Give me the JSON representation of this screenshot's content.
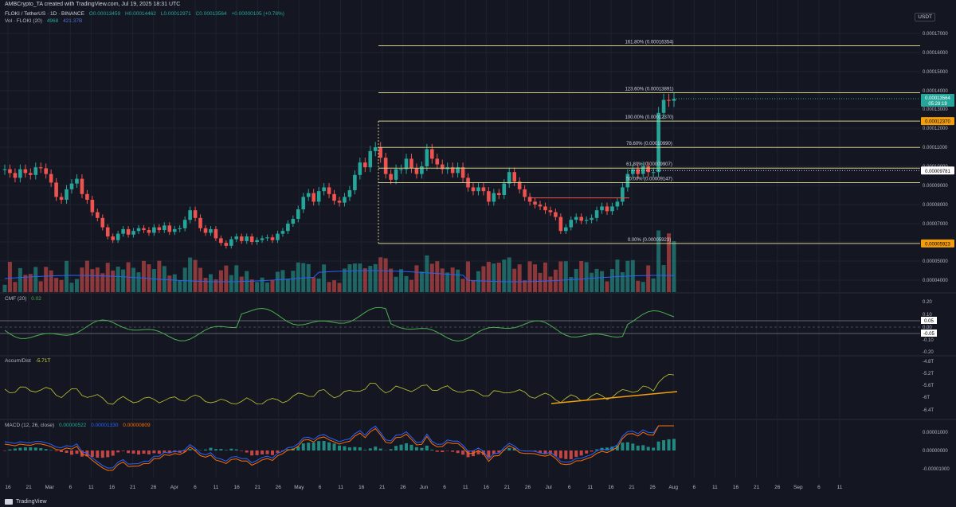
{
  "header": {
    "author_line": "AMBCrypto_TA created with TradingView.com, Jul 19, 2025 18:31 UTC",
    "currency": "USDT"
  },
  "main_legend": {
    "symbol": "FLOKI / TetherUS · 1D · BINANCE",
    "o": "O0.00013459",
    "h": "H0.00014462",
    "l": "L0.00012971",
    "c": "C0.00013564",
    "change": "+0.00000105 (+0.78%)"
  },
  "vol_legend": {
    "label": "Vol · FLOKI (20)",
    "v1": "4968",
    "v2": "421.37B"
  },
  "cmf_legend": {
    "label": "CMF (20)",
    "value": "0.02"
  },
  "ad_legend": {
    "label": "Accum/Dist",
    "value": "-5.71T"
  },
  "macd_legend": {
    "label": "MACD (12, 26, close)",
    "v1": "0.00000522",
    "v2": "0.00001330",
    "v3": "0.00000809"
  },
  "colors": {
    "bg": "#141722",
    "up": "#26a69a",
    "down": "#ef5350",
    "fib": "#cfcf8a",
    "orange": "#f59e0b",
    "grid": "#1e2230"
  },
  "price_axis": {
    "ticks": [
      "0.00017000",
      "0.00016000",
      "0.00015000",
      "0.00014000",
      "0.00013000",
      "0.00012000",
      "0.00011000",
      "0.00010000",
      "0.00009000",
      "0.00008000",
      "0.00007000",
      "0.00006000",
      "0.00005000",
      "0.00004000"
    ],
    "current_price": "0.00013564",
    "countdown": "05:28:19",
    "marker_orange_1": "0.00012370",
    "marker_white": "0.00009781",
    "marker_orange_2": "0.00005923"
  },
  "cmf_axis": {
    "ticks": [
      "0.20",
      "0.10",
      "0.00",
      "-0.10",
      "-0.20"
    ],
    "marker_1": "0.05",
    "marker_2": "-0.05"
  },
  "ad_axis": {
    "ticks": [
      "-4.8T",
      "-5.2T",
      "-5.6T",
      "-6T",
      "-6.4T"
    ]
  },
  "macd_axis": {
    "ticks": [
      "0.00001000",
      "0.00000000",
      "-0.00001000"
    ]
  },
  "fib_levels": [
    {
      "label": "161.80% (0.00016354)",
      "value": 0.00016354
    },
    {
      "label": "123.60% (0.00013891)",
      "value": 0.00013891
    },
    {
      "label": "100.00% (0.00012370)",
      "value": 0.0001237
    },
    {
      "label": "78.60% (0.00010990)",
      "value": 0.0001099
    },
    {
      "label": "61.80% (0.00009907)",
      "value": 9.907e-05
    },
    {
      "label": "50.00% (0.00009147)",
      "value": 9.147e-05
    },
    {
      "label": "0.00% (0.00005923)",
      "value": 5.923e-05
    }
  ],
  "time_axis": [
    "16",
    "21",
    "Mar",
    "6",
    "11",
    "16",
    "21",
    "26",
    "Apr",
    "6",
    "11",
    "16",
    "21",
    "26",
    "May",
    "6",
    "11",
    "16",
    "21",
    "26",
    "Jun",
    "6",
    "11",
    "16",
    "21",
    "26",
    "Jul",
    "6",
    "11",
    "16",
    "21",
    "26",
    "Aug",
    "6",
    "11",
    "16",
    "21",
    "26",
    "Sep",
    "6",
    "11"
  ],
  "footer": {
    "brand": "TradingView"
  },
  "chart_data": {
    "type": "candlestick",
    "closes": [
      9.85e-05,
      9.65e-05,
      9.4e-05,
      9.85e-05,
      9.65e-05,
      9.55e-05,
      9.95e-05,
      9.9e-05,
      9.6e-05,
      9.15e-05,
      8.4e-05,
      8.25e-05,
      8.8e-05,
      9.1e-05,
      9.35e-05,
      8.55e-05,
      8.25e-05,
      7.6e-05,
      7.3e-05,
      6.8e-05,
      6.3e-05,
      6.1e-05,
      6.45e-05,
      6.7e-05,
      6.4e-05,
      6.6e-05,
      6.75e-05,
      6.65e-05,
      6.5e-05,
      6.8e-05,
      6.65e-05,
      6.9e-05,
      6.55e-05,
      6.7e-05,
      6.75e-05,
      7.2e-05,
      7.7e-05,
      7.3e-05,
      6.75e-05,
      6.5e-05,
      6.7e-05,
      6.2e-05,
      5.95e-05,
      5.8e-05,
      6.15e-05,
      6.3e-05,
      6.05e-05,
      6.3e-05,
      6e-05,
      6.1e-05,
      6.2e-05,
      6.25e-05,
      6.1e-05,
      6.45e-05,
      6.6e-05,
      7e-05,
      7.25e-05,
      7.75e-05,
      8.4e-05,
      8.6e-05,
      8.15e-05,
      8.7e-05,
      8.9e-05,
      8.55e-05,
      8.2e-05,
      8.1e-05,
      8.4e-05,
      8.75e-05,
      9.55e-05,
      0.000102,
      9.95e-05,
      0.000108,
      0.00011,
      0.0001045,
      9.6e-05,
      9.3e-05,
      9.85e-05,
      9.85e-05,
      0.000104,
      9.9e-05,
      9.6e-05,
      0.0001,
      0.000109,
      0.000104,
      0.000101,
      9.85e-05,
      9.95e-05,
      9.65e-05,
      9.95e-05,
      9.4e-05,
      8.9e-05,
      8.7e-05,
      8.9e-05,
      8.7e-05,
      8.15e-05,
      8.6e-05,
      8.5e-05,
      9.1e-05,
      9.7e-05,
      9.2e-05,
      8.8e-05,
      8.4e-05,
      8.15e-05,
      8e-05,
      7.9e-05,
      7.7e-05,
      7.6e-05,
      7.35e-05,
      6.6e-05,
      6.8e-05,
      7.2e-05,
      7.35e-05,
      7.15e-05,
      7.2e-05,
      7.3e-05,
      7.7e-05,
      7.9e-05,
      7.65e-05,
      7.9e-05,
      8.15e-05,
      8.9e-05,
      9.6e-05,
      9.85e-05,
      9.6e-05,
      0.0001,
      9.7e-05,
      9.7e-05,
      0.000128,
      0.000135,
      0.0001345,
      0.0001356
    ],
    "cmf_range": [
      -0.2,
      0.2
    ],
    "ad_range": [
      "-6.4T",
      "-4.8T"
    ],
    "macd_range": [
      -1e-05,
      1e-05
    ]
  }
}
